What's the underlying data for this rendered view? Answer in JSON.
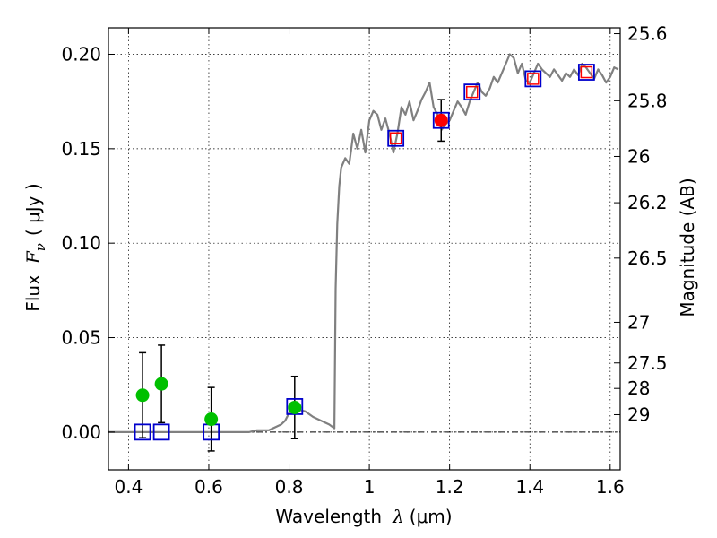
{
  "chart_data": {
    "type": "scatter",
    "title": "",
    "xlabel": "Wavelength",
    "xlabel_symbol": "λ",
    "xlabel_unit": "(μm)",
    "ylabel": "Flux",
    "ylabel_symbol": "F",
    "ylabel_subscript": "ν",
    "ylabel_unit": "( μJy )",
    "y2label": "Magnitude (AB)",
    "xlim": [
      0.35,
      1.625
    ],
    "ylim": [
      -0.02,
      0.214
    ],
    "grid": true,
    "legend": "none",
    "x_ticks": [
      {
        "value": 0.4,
        "label": "0.4"
      },
      {
        "value": 0.6,
        "label": "0.6"
      },
      {
        "value": 0.8,
        "label": "0.8"
      },
      {
        "value": 1.0,
        "label": "1"
      },
      {
        "value": 1.2,
        "label": "1.2"
      },
      {
        "value": 1.4,
        "label": "1.4"
      },
      {
        "value": 1.6,
        "label": "1.6"
      }
    ],
    "y_ticks": [
      {
        "value": 0.0,
        "label": "0.00"
      },
      {
        "value": 0.05,
        "label": "0.05"
      },
      {
        "value": 0.1,
        "label": "0.10"
      },
      {
        "value": 0.15,
        "label": "0.15"
      },
      {
        "value": 0.2,
        "label": "0.20"
      }
    ],
    "y2_ticks": [
      {
        "label": "25.6",
        "flux": 0.2109
      },
      {
        "label": "25.8",
        "flux": 0.1754
      },
      {
        "label": "26",
        "flux": 0.1459
      },
      {
        "label": "26.2",
        "flux": 0.1214
      },
      {
        "label": "26.5",
        "flux": 0.0921
      },
      {
        "label": "27",
        "flux": 0.0581
      },
      {
        "label": "27.5",
        "flux": 0.0366
      },
      {
        "label": "28",
        "flux": 0.0231
      },
      {
        "label": "29",
        "flux": 0.0092
      }
    ],
    "model_spectrum": {
      "color": "#808080",
      "x": [
        0.35,
        0.7,
        0.72,
        0.75,
        0.76,
        0.77,
        0.78,
        0.79,
        0.8,
        0.82,
        0.84,
        0.86,
        0.88,
        0.9,
        0.913,
        0.916,
        0.92,
        0.925,
        0.93,
        0.94,
        0.95,
        0.96,
        0.97,
        0.98,
        0.99,
        1.0,
        1.01,
        1.02,
        1.03,
        1.04,
        1.05,
        1.06,
        1.07,
        1.08,
        1.09,
        1.1,
        1.11,
        1.12,
        1.13,
        1.14,
        1.15,
        1.16,
        1.17,
        1.18,
        1.19,
        1.2,
        1.21,
        1.22,
        1.23,
        1.24,
        1.25,
        1.26,
        1.27,
        1.28,
        1.29,
        1.3,
        1.31,
        1.32,
        1.33,
        1.34,
        1.35,
        1.36,
        1.37,
        1.38,
        1.39,
        1.4,
        1.41,
        1.42,
        1.43,
        1.44,
        1.45,
        1.46,
        1.47,
        1.48,
        1.49,
        1.5,
        1.51,
        1.52,
        1.53,
        1.54,
        1.55,
        1.56,
        1.57,
        1.58,
        1.59,
        1.6,
        1.61,
        1.62
      ],
      "y": [
        0.0,
        0.0,
        0.001,
        0.001,
        0.002,
        0.003,
        0.004,
        0.006,
        0.01,
        0.012,
        0.011,
        0.008,
        0.006,
        0.004,
        0.002,
        0.076,
        0.11,
        0.13,
        0.14,
        0.145,
        0.142,
        0.158,
        0.15,
        0.16,
        0.148,
        0.165,
        0.17,
        0.168,
        0.16,
        0.166,
        0.158,
        0.148,
        0.158,
        0.172,
        0.168,
        0.175,
        0.165,
        0.17,
        0.176,
        0.18,
        0.185,
        0.172,
        0.168,
        0.16,
        0.163,
        0.165,
        0.17,
        0.175,
        0.172,
        0.168,
        0.175,
        0.18,
        0.185,
        0.18,
        0.178,
        0.182,
        0.188,
        0.185,
        0.19,
        0.195,
        0.2,
        0.198,
        0.19,
        0.195,
        0.186,
        0.185,
        0.19,
        0.195,
        0.192,
        0.19,
        0.188,
        0.192,
        0.189,
        0.186,
        0.19,
        0.188,
        0.192,
        0.189,
        0.195,
        0.193,
        0.19,
        0.187,
        0.192,
        0.189,
        0.185,
        0.188,
        0.193,
        0.192
      ]
    },
    "measured_points": {
      "color": "#00c000",
      "points": [
        {
          "x": 0.435,
          "y": 0.0195,
          "err": 0.0225
        },
        {
          "x": 0.482,
          "y": 0.0255,
          "err": 0.0205
        },
        {
          "x": 0.606,
          "y": 0.0068,
          "err": 0.0168
        },
        {
          "x": 0.814,
          "y": 0.013,
          "err": 0.0165
        },
        {
          "x": 1.179,
          "y": 0.165,
          "err": 0.011,
          "color": "#ff0000"
        }
      ]
    },
    "model_bandpass": {
      "color": "#0000cc",
      "points": [
        {
          "x": 0.435,
          "y": 0.0
        },
        {
          "x": 0.482,
          "y": 0.0
        },
        {
          "x": 0.606,
          "y": 0.0
        },
        {
          "x": 0.814,
          "y": 0.0135
        },
        {
          "x": 1.066,
          "y": 0.1555
        },
        {
          "x": 1.179,
          "y": 0.165
        },
        {
          "x": 1.256,
          "y": 0.18
        },
        {
          "x": 1.408,
          "y": 0.187
        },
        {
          "x": 1.541,
          "y": 0.1905
        }
      ]
    },
    "measured_bandpass": {
      "color": "#ff0000",
      "points": [
        {
          "x": 1.066,
          "y": 0.1555
        },
        {
          "x": 1.256,
          "y": 0.18
        },
        {
          "x": 1.408,
          "y": 0.187
        },
        {
          "x": 1.541,
          "y": 0.1905
        }
      ]
    }
  }
}
